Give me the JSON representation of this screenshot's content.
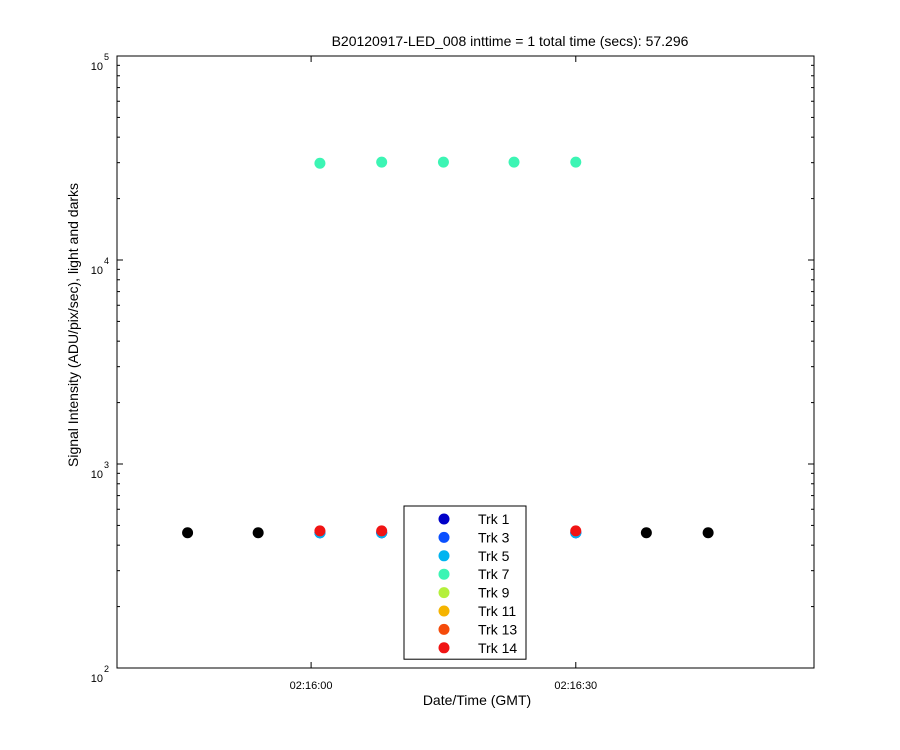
{
  "chart_data": {
    "type": "scatter",
    "title": "B20120917-LED_008 inttime = 1 total time (secs): 57.296",
    "xlabel": "Date/Time (GMT)",
    "ylabel": "Signal Intensity (ADU/pix/sec), light and darks",
    "y_scale": "log",
    "ylim": [
      100,
      100000
    ],
    "xlim": [
      "02:15:38",
      "02:16:57"
    ],
    "x_ticks": [
      "02:16:00",
      "02:16:30"
    ],
    "y_ticks": [
      {
        "base": "10",
        "exp": "2"
      },
      {
        "base": "10",
        "exp": "3"
      },
      {
        "base": "10",
        "exp": "4"
      },
      {
        "base": "10",
        "exp": "5"
      }
    ],
    "grid": false,
    "legend_position": "bottom-center",
    "series": [
      {
        "name": "Trk 1",
        "color": "#0000c8",
        "x": [
          "02:16:01",
          "02:16:08",
          "02:16:15",
          "02:16:23",
          "02:16:30"
        ],
        "y": [
          460,
          460,
          460,
          460,
          460
        ]
      },
      {
        "name": "Trk 3",
        "color": "#0a50ff",
        "x": [
          "02:16:01",
          "02:16:08",
          "02:16:15",
          "02:16:23",
          "02:16:30"
        ],
        "y": [
          460,
          460,
          460,
          460,
          460
        ]
      },
      {
        "name": "Trk 5",
        "color": "#00b4f0",
        "x": [
          "02:16:01",
          "02:16:08",
          "02:16:15",
          "02:16:23",
          "02:16:30"
        ],
        "y": [
          460,
          460,
          460,
          460,
          460
        ]
      },
      {
        "name": "Trk 7",
        "color": "#3cf5b4",
        "x": [
          "02:16:01",
          "02:16:08",
          "02:16:15",
          "02:16:23",
          "02:16:30"
        ],
        "y": [
          29800,
          30200,
          30200,
          30200,
          30200
        ]
      },
      {
        "name": "Trk 9",
        "color": "#b4f03c",
        "x": [],
        "y": []
      },
      {
        "name": "Trk 11",
        "color": "#f5b400",
        "x": [],
        "y": []
      },
      {
        "name": "Trk 13",
        "color": "#f54b0a",
        "x": [],
        "y": []
      },
      {
        "name": "Trk 14",
        "color": "#f01414",
        "x": [
          "02:16:01",
          "02:16:08",
          "02:16:30"
        ],
        "y": [
          470,
          470,
          470
        ]
      }
    ],
    "darks": {
      "color": "#000000",
      "x": [
        "02:15:46",
        "02:15:54",
        "02:16:38",
        "02:16:45"
      ],
      "y": [
        460,
        460,
        460,
        460
      ]
    }
  }
}
